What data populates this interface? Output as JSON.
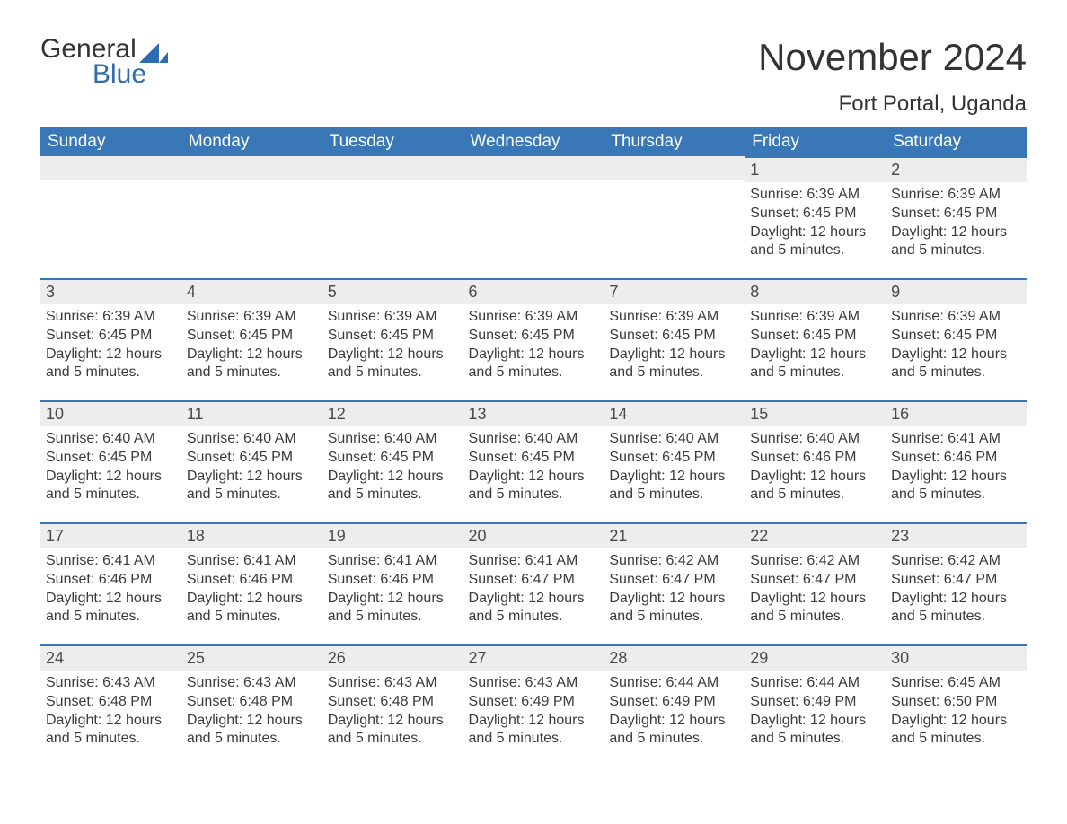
{
  "brand": {
    "part1": "General",
    "part2": "Blue",
    "shape_color": "#2f6bb0",
    "text_color": "#333333"
  },
  "title": "November 2024",
  "location": "Fort Portal, Uganda",
  "colors": {
    "header_bg": "#3a77b7",
    "header_text": "#ffffff",
    "daynum_bg": "#ededed",
    "day_border": "#3a77b7",
    "body_text": "#3b3b3b",
    "page_bg": "#ffffff"
  },
  "fonts": {
    "title_size_pt": 32,
    "location_size_pt": 18,
    "header_size_pt": 14,
    "daynum_size_pt": 14,
    "body_size_pt": 12
  },
  "layout": {
    "columns": 7,
    "rows": 5,
    "leading_blank_cells": 5
  },
  "weekdays": [
    "Sunday",
    "Monday",
    "Tuesday",
    "Wednesday",
    "Thursday",
    "Friday",
    "Saturday"
  ],
  "days": [
    {
      "n": 1,
      "sunrise": "6:39 AM",
      "sunset": "6:45 PM",
      "daylight": "12 hours and 5 minutes."
    },
    {
      "n": 2,
      "sunrise": "6:39 AM",
      "sunset": "6:45 PM",
      "daylight": "12 hours and 5 minutes."
    },
    {
      "n": 3,
      "sunrise": "6:39 AM",
      "sunset": "6:45 PM",
      "daylight": "12 hours and 5 minutes."
    },
    {
      "n": 4,
      "sunrise": "6:39 AM",
      "sunset": "6:45 PM",
      "daylight": "12 hours and 5 minutes."
    },
    {
      "n": 5,
      "sunrise": "6:39 AM",
      "sunset": "6:45 PM",
      "daylight": "12 hours and 5 minutes."
    },
    {
      "n": 6,
      "sunrise": "6:39 AM",
      "sunset": "6:45 PM",
      "daylight": "12 hours and 5 minutes."
    },
    {
      "n": 7,
      "sunrise": "6:39 AM",
      "sunset": "6:45 PM",
      "daylight": "12 hours and 5 minutes."
    },
    {
      "n": 8,
      "sunrise": "6:39 AM",
      "sunset": "6:45 PM",
      "daylight": "12 hours and 5 minutes."
    },
    {
      "n": 9,
      "sunrise": "6:39 AM",
      "sunset": "6:45 PM",
      "daylight": "12 hours and 5 minutes."
    },
    {
      "n": 10,
      "sunrise": "6:40 AM",
      "sunset": "6:45 PM",
      "daylight": "12 hours and 5 minutes."
    },
    {
      "n": 11,
      "sunrise": "6:40 AM",
      "sunset": "6:45 PM",
      "daylight": "12 hours and 5 minutes."
    },
    {
      "n": 12,
      "sunrise": "6:40 AM",
      "sunset": "6:45 PM",
      "daylight": "12 hours and 5 minutes."
    },
    {
      "n": 13,
      "sunrise": "6:40 AM",
      "sunset": "6:45 PM",
      "daylight": "12 hours and 5 minutes."
    },
    {
      "n": 14,
      "sunrise": "6:40 AM",
      "sunset": "6:45 PM",
      "daylight": "12 hours and 5 minutes."
    },
    {
      "n": 15,
      "sunrise": "6:40 AM",
      "sunset": "6:46 PM",
      "daylight": "12 hours and 5 minutes."
    },
    {
      "n": 16,
      "sunrise": "6:41 AM",
      "sunset": "6:46 PM",
      "daylight": "12 hours and 5 minutes."
    },
    {
      "n": 17,
      "sunrise": "6:41 AM",
      "sunset": "6:46 PM",
      "daylight": "12 hours and 5 minutes."
    },
    {
      "n": 18,
      "sunrise": "6:41 AM",
      "sunset": "6:46 PM",
      "daylight": "12 hours and 5 minutes."
    },
    {
      "n": 19,
      "sunrise": "6:41 AM",
      "sunset": "6:46 PM",
      "daylight": "12 hours and 5 minutes."
    },
    {
      "n": 20,
      "sunrise": "6:41 AM",
      "sunset": "6:47 PM",
      "daylight": "12 hours and 5 minutes."
    },
    {
      "n": 21,
      "sunrise": "6:42 AM",
      "sunset": "6:47 PM",
      "daylight": "12 hours and 5 minutes."
    },
    {
      "n": 22,
      "sunrise": "6:42 AM",
      "sunset": "6:47 PM",
      "daylight": "12 hours and 5 minutes."
    },
    {
      "n": 23,
      "sunrise": "6:42 AM",
      "sunset": "6:47 PM",
      "daylight": "12 hours and 5 minutes."
    },
    {
      "n": 24,
      "sunrise": "6:43 AM",
      "sunset": "6:48 PM",
      "daylight": "12 hours and 5 minutes."
    },
    {
      "n": 25,
      "sunrise": "6:43 AM",
      "sunset": "6:48 PM",
      "daylight": "12 hours and 5 minutes."
    },
    {
      "n": 26,
      "sunrise": "6:43 AM",
      "sunset": "6:48 PM",
      "daylight": "12 hours and 5 minutes."
    },
    {
      "n": 27,
      "sunrise": "6:43 AM",
      "sunset": "6:49 PM",
      "daylight": "12 hours and 5 minutes."
    },
    {
      "n": 28,
      "sunrise": "6:44 AM",
      "sunset": "6:49 PM",
      "daylight": "12 hours and 5 minutes."
    },
    {
      "n": 29,
      "sunrise": "6:44 AM",
      "sunset": "6:49 PM",
      "daylight": "12 hours and 5 minutes."
    },
    {
      "n": 30,
      "sunrise": "6:45 AM",
      "sunset": "6:50 PM",
      "daylight": "12 hours and 5 minutes."
    }
  ],
  "labels": {
    "sunrise": "Sunrise:",
    "sunset": "Sunset:",
    "daylight": "Daylight:"
  }
}
